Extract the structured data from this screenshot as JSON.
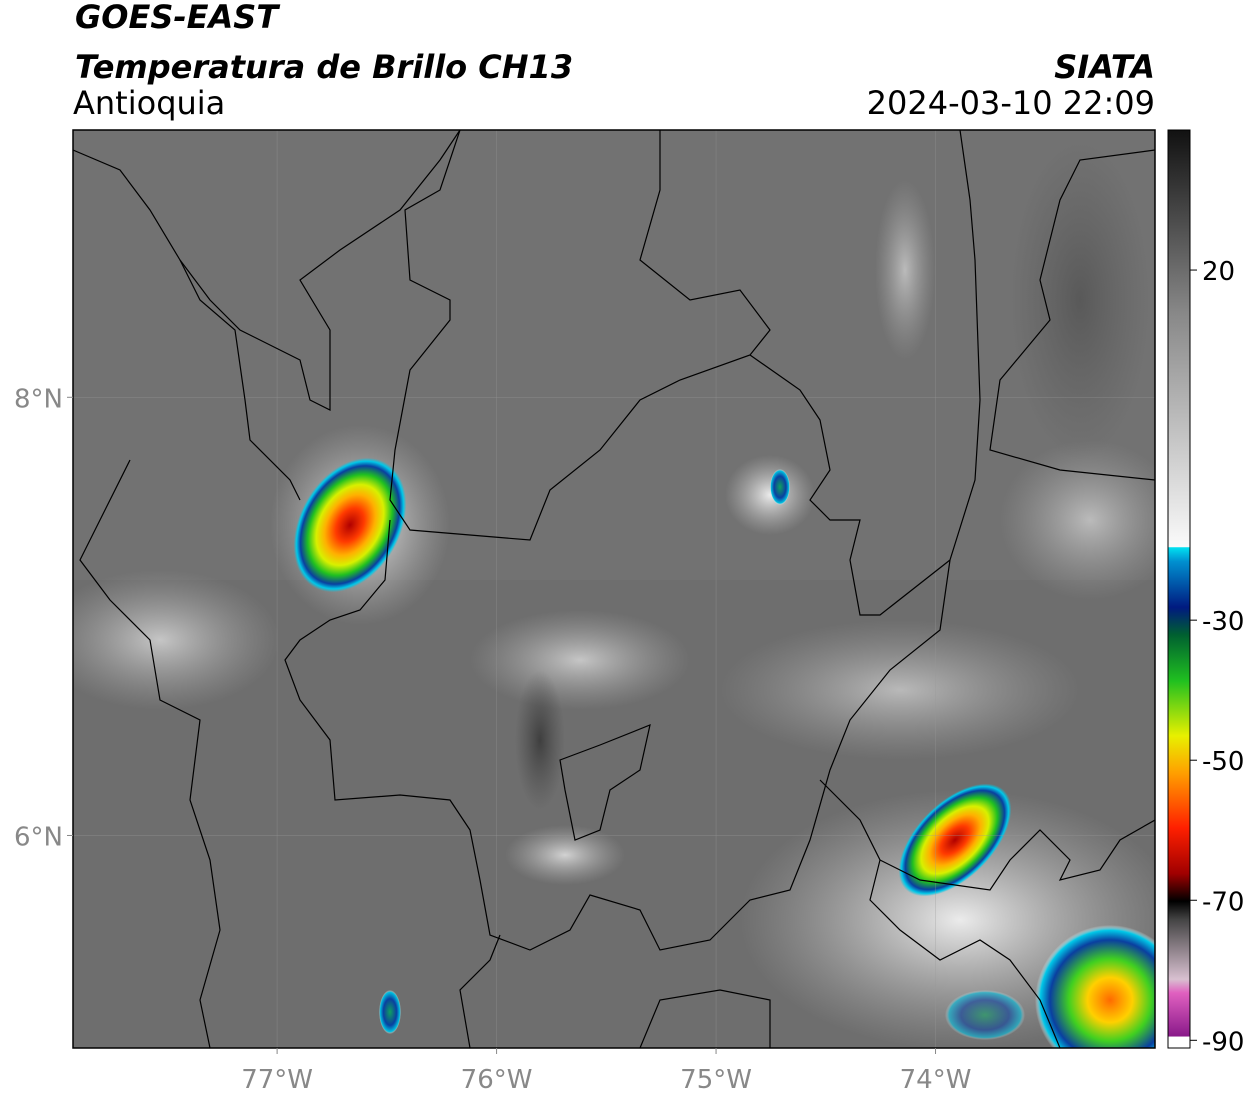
{
  "header": {
    "title": "GOES-EAST",
    "subtitle": "Temperatura de Brillo CH13",
    "region": "Antioquia",
    "source": "SIATA",
    "datetime": "2024-03-10 22:09"
  },
  "map": {
    "lon_range": [
      -77.93,
      -73.0
    ],
    "lat_range": [
      5.03,
      9.22
    ],
    "lon_ticks": [
      {
        "value": -77,
        "label": "77°W"
      },
      {
        "value": -76,
        "label": "76°W"
      },
      {
        "value": -75,
        "label": "75°W"
      },
      {
        "value": -74,
        "label": "74°W"
      }
    ],
    "lat_ticks": [
      {
        "value": 8,
        "label": "8°N"
      },
      {
        "value": 6,
        "label": "6°N"
      }
    ]
  },
  "colorbar": {
    "range": [
      -91.1,
      40
    ],
    "ticks": [
      20,
      -30,
      -50,
      -70,
      -90
    ]
  }
}
